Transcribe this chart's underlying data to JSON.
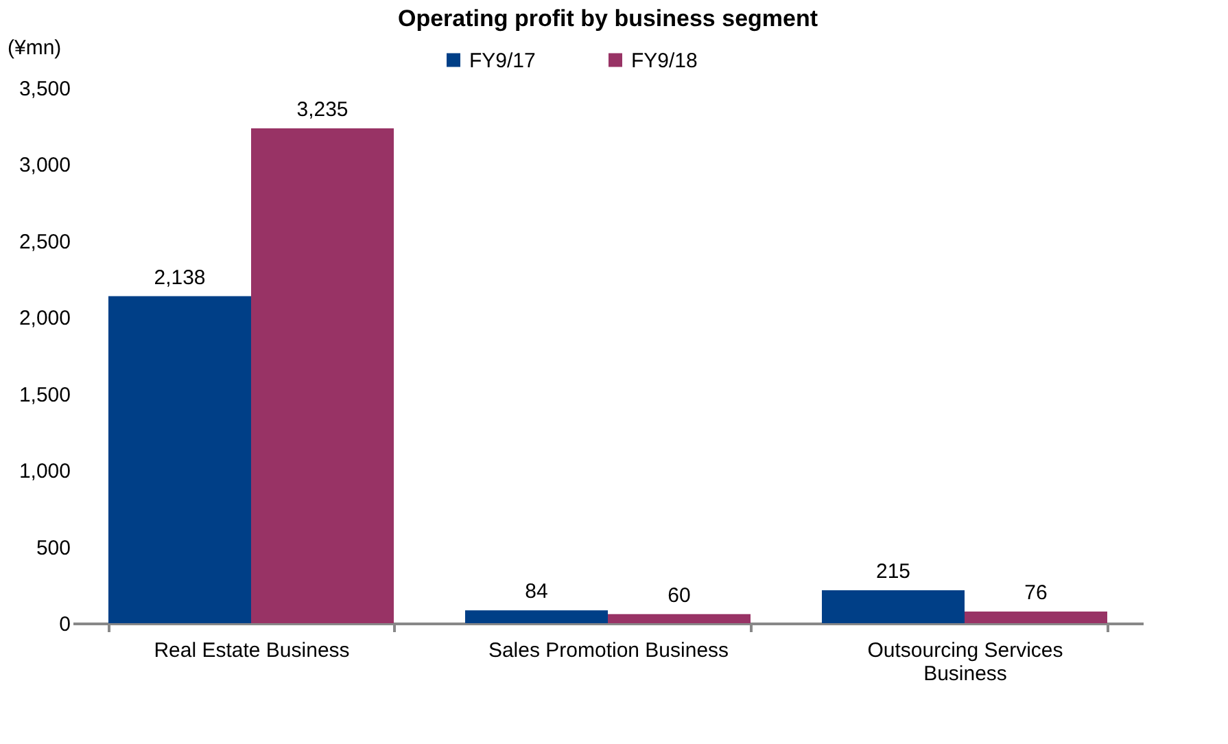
{
  "chart_data": {
    "type": "bar",
    "title": "Operating profit by business segment",
    "ylabel": "(¥mn)",
    "categories": [
      "Real Estate Business",
      "Sales Promotion Business",
      "Outsourcing Services Business"
    ],
    "series": [
      {
        "name": "FY9/17",
        "color": "#003f87",
        "values": [
          2138,
          84,
          215
        ],
        "value_labels": [
          "2,138",
          "84",
          "215"
        ]
      },
      {
        "name": "FY9/18",
        "color": "#983365",
        "values": [
          3235,
          60,
          76
        ],
        "value_labels": [
          "3,235",
          "60",
          "76"
        ]
      }
    ],
    "ylim": [
      0,
      3500
    ],
    "yticks": [
      0,
      {
        "value": 500,
        "label": "500"
      },
      {
        "value": 1000,
        "label": "1,000"
      },
      {
        "value": 1500,
        "label": "1,500"
      },
      {
        "value": 2000,
        "label": "2,000"
      },
      {
        "value": 2500,
        "label": "2,500"
      },
      {
        "value": 3000,
        "label": "3,000"
      },
      {
        "value": 3500,
        "label": "3,500"
      }
    ],
    "grid": false,
    "legend": "top"
  }
}
